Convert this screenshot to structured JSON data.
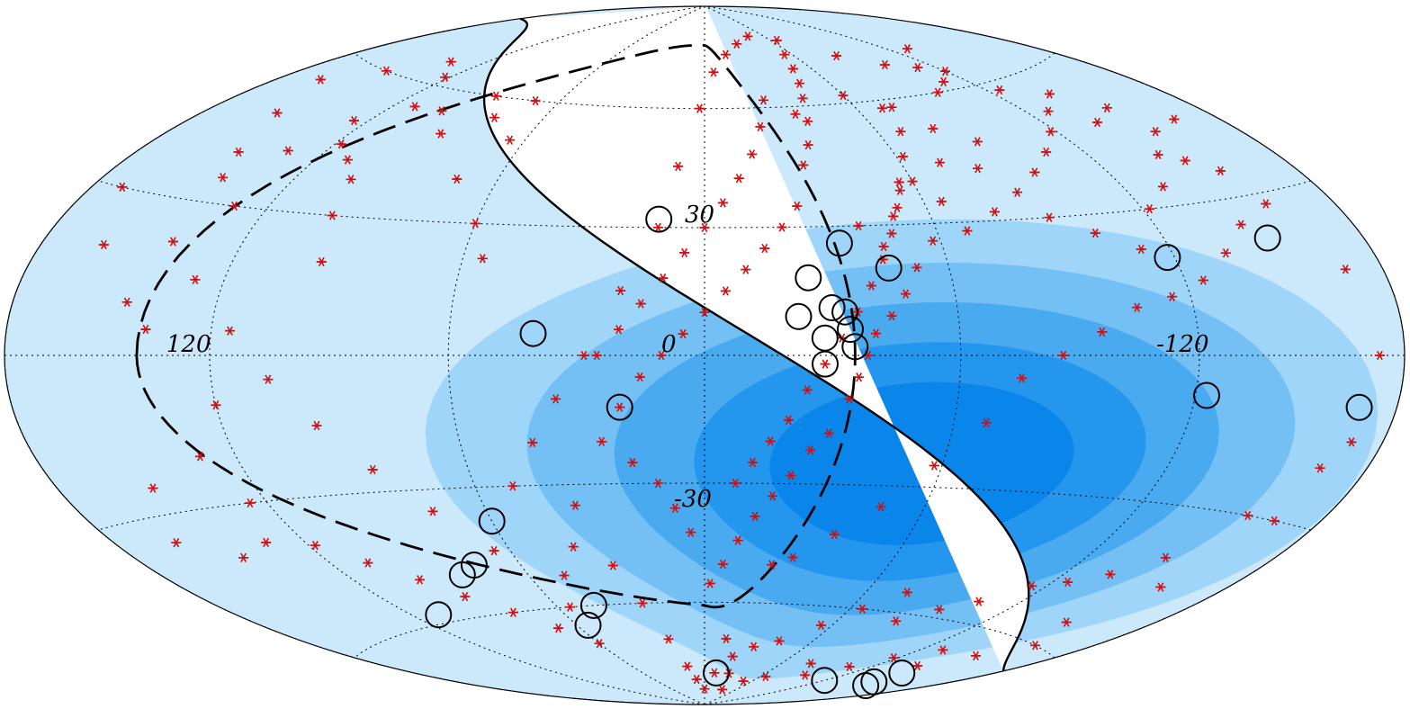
{
  "chart_data": {
    "type": "scatter",
    "projection": "aitoff",
    "coordinate_system": "galactic",
    "title": "",
    "grid": true,
    "lon_labels": [
      "120",
      "0",
      "-120"
    ],
    "lat_labels": [
      "30",
      "-30"
    ],
    "lon_label_values": [
      120,
      0,
      -120
    ],
    "lat_label_values": [
      30,
      -30
    ],
    "grid_lon_values": [
      -180,
      -120,
      -60,
      0,
      60,
      120,
      180
    ],
    "grid_lat_values": [
      -60,
      -30,
      0,
      30,
      60
    ],
    "colors": {
      "exposure_levels": [
        "#cce9fb",
        "#9fd5f8",
        "#74c0f4",
        "#4aaaf0",
        "#2496ee",
        "#0a86ea"
      ],
      "marker": "#d01010",
      "source_circle": "#000000"
    },
    "exposure_bands_lonlat": [
      [
        -55,
        -25,
        165,
        68
      ],
      [
        -55,
        -25,
        138,
        56
      ],
      [
        -55,
        -25,
        110,
        46
      ],
      [
        -55,
        -25,
        86,
        37
      ],
      [
        -55,
        -25,
        64,
        28
      ],
      [
        -55,
        -25,
        43,
        19
      ]
    ],
    "field_of_view_boundary": "solid curve",
    "supergalactic_plane": "dashed curve",
    "events": [
      [
        147,
        40
      ],
      [
        132,
        42
      ],
      [
        125,
        50
      ],
      [
        118,
        45
      ],
      [
        110,
        42
      ],
      [
        103,
        38
      ],
      [
        100,
        30
      ],
      [
        96,
        20
      ],
      [
        140,
        22
      ],
      [
        130,
        30
      ],
      [
        150,
        60
      ],
      [
        135,
        65
      ],
      [
        122,
        62
      ],
      [
        112,
        55
      ],
      [
        100,
        55
      ],
      [
        90,
        50
      ],
      [
        88,
        60
      ],
      [
        78,
        55
      ],
      [
        70,
        60
      ],
      [
        65,
        50
      ],
      [
        72,
        40
      ],
      [
        60,
        30
      ],
      [
        55,
        22
      ],
      [
        170,
        30
      ],
      [
        160,
        20
      ],
      [
        145,
        10
      ],
      [
        138,
        5
      ],
      [
        120,
        -10
      ],
      [
        130,
        -20
      ],
      [
        150,
        -25
      ],
      [
        160,
        -35
      ],
      [
        145,
        -40
      ],
      [
        132,
        -38
      ],
      [
        125,
        -30
      ],
      [
        118,
        -40
      ],
      [
        108,
        -45
      ],
      [
        98,
        -50
      ],
      [
        90,
        -55
      ],
      [
        80,
        -60
      ],
      [
        70,
        -65
      ],
      [
        60,
        -70
      ],
      [
        55,
        -60
      ],
      [
        48,
        -52
      ],
      [
        40,
        -45
      ],
      [
        35,
        -35
      ],
      [
        30,
        -50
      ],
      [
        25,
        -60
      ],
      [
        20,
        -70
      ],
      [
        15,
        -78
      ],
      [
        10,
        -82
      ],
      [
        0,
        -85
      ],
      [
        -10,
        -80
      ],
      [
        -20,
        -75
      ],
      [
        -30,
        -72
      ],
      [
        -42,
        -70
      ],
      [
        -55,
        -65
      ],
      [
        -65,
        -60
      ],
      [
        -75,
        -55
      ],
      [
        -85,
        -62
      ],
      [
        -95,
        -58
      ],
      [
        -105,
        -55
      ],
      [
        -115,
        -50
      ],
      [
        -125,
        -48
      ],
      [
        -135,
        -45
      ],
      [
        -145,
        -40
      ],
      [
        -155,
        -30
      ],
      [
        -165,
        -20
      ],
      [
        -160,
        -60
      ],
      [
        -150,
        -65
      ],
      [
        -140,
        -70
      ],
      [
        -130,
        -66
      ],
      [
        -118,
        -70
      ],
      [
        -108,
        -74
      ],
      [
        -95,
        -78
      ],
      [
        -80,
        -75
      ],
      [
        -65,
        -80
      ],
      [
        -50,
        -82
      ],
      [
        -35,
        -85
      ],
      [
        -25,
        -80
      ],
      [
        -12,
        -70
      ],
      [
        -22,
        -50
      ],
      [
        -28,
        -48
      ],
      [
        -38,
        -42
      ],
      [
        -48,
        -35
      ],
      [
        -58,
        -25
      ],
      [
        -68,
        -15
      ],
      [
        -75,
        -5
      ],
      [
        -85,
        0
      ],
      [
        -95,
        5
      ],
      [
        -105,
        10
      ],
      [
        -115,
        12
      ],
      [
        -125,
        15
      ],
      [
        -135,
        20
      ],
      [
        -145,
        25
      ],
      [
        -155,
        35
      ],
      [
        -165,
        45
      ],
      [
        -150,
        50
      ],
      [
        -140,
        55
      ],
      [
        -128,
        52
      ],
      [
        -118,
        48
      ],
      [
        -108,
        44
      ],
      [
        -98,
        40
      ],
      [
        -88,
        36
      ],
      [
        -78,
        32
      ],
      [
        -68,
        28
      ],
      [
        -58,
        26
      ],
      [
        -52,
        20
      ],
      [
        -48,
        14
      ],
      [
        -44,
        9
      ],
      [
        -40,
        5
      ],
      [
        -38,
        0
      ],
      [
        -36,
        -5
      ],
      [
        -34,
        -10
      ],
      [
        -30,
        -18
      ],
      [
        -26,
        -22
      ],
      [
        -22,
        -28
      ],
      [
        -18,
        -33
      ],
      [
        -14,
        -38
      ],
      [
        -10,
        -44
      ],
      [
        -6,
        -50
      ],
      [
        -2,
        -55
      ],
      [
        -30,
        45
      ],
      [
        -34,
        50
      ],
      [
        -38,
        56
      ],
      [
        -42,
        62
      ],
      [
        -46,
        66
      ],
      [
        -50,
        70
      ],
      [
        -55,
        74
      ],
      [
        -35,
        58
      ],
      [
        -25,
        62
      ],
      [
        -20,
        55
      ],
      [
        -15,
        48
      ],
      [
        -10,
        42
      ],
      [
        -5,
        36
      ],
      [
        0,
        30
      ],
      [
        5,
        24
      ],
      [
        10,
        18
      ],
      [
        15,
        12
      ],
      [
        20,
        6
      ],
      [
        25,
        0
      ],
      [
        -60,
        62
      ],
      [
        -70,
        58
      ],
      [
        -80,
        52
      ],
      [
        -90,
        48
      ],
      [
        -100,
        60
      ],
      [
        -110,
        62
      ],
      [
        -120,
        64
      ],
      [
        -130,
        70
      ],
      [
        -60,
        40
      ],
      [
        -65,
        35
      ],
      [
        -72,
        44
      ],
      [
        -82,
        42
      ],
      [
        -92,
        30
      ],
      [
        -102,
        26
      ],
      [
        -112,
        22
      ],
      [
        -122,
        30
      ],
      [
        -132,
        34
      ],
      [
        -142,
        40
      ],
      [
        -152,
        44
      ],
      [
        -40,
        30
      ],
      [
        -45,
        25
      ],
      [
        -50,
        32
      ],
      [
        -55,
        38
      ],
      [
        -25,
        35
      ],
      [
        -20,
        30
      ],
      [
        -15,
        25
      ],
      [
        -10,
        20
      ],
      [
        -5,
        15
      ],
      [
        0,
        10
      ],
      [
        5,
        5
      ],
      [
        10,
        0
      ],
      [
        15,
        -5
      ],
      [
        20,
        -12
      ],
      [
        25,
        -20
      ],
      [
        18,
        -25
      ],
      [
        12,
        -30
      ],
      [
        8,
        -36
      ],
      [
        4,
        -42
      ],
      [
        -8,
        -30
      ],
      [
        -12,
        -25
      ],
      [
        -16,
        -20
      ],
      [
        -20,
        -15
      ],
      [
        -24,
        -8
      ],
      [
        -28,
        -2
      ],
      [
        -32,
        4
      ],
      [
        -36,
        10
      ],
      [
        -40,
        16
      ],
      [
        -44,
        22
      ],
      [
        -48,
        28
      ],
      [
        -52,
        34
      ],
      [
        -56,
        40
      ],
      [
        -62,
        46
      ],
      [
        -68,
        52
      ],
      [
        -74,
        58
      ],
      [
        165,
        55
      ],
      [
        155,
        48
      ],
      [
        142,
        35
      ],
      [
        128,
        15
      ],
      [
        115,
        5
      ],
      [
        105,
        -5
      ],
      [
        95,
        -15
      ],
      [
        85,
        -25
      ],
      [
        75,
        -35
      ],
      [
        65,
        -45
      ],
      [
        50,
        -30
      ],
      [
        42,
        -20
      ],
      [
        35,
        -10
      ],
      [
        28,
        0
      ],
      [
        20,
        15
      ],
      [
        12,
        30
      ],
      [
        8,
        45
      ],
      [
        2,
        60
      ],
      [
        -5,
        70
      ],
      [
        -15,
        75
      ],
      [
        -28,
        78
      ],
      [
        -45,
        80
      ],
      [
        -65,
        78
      ],
      [
        -85,
        72
      ],
      [
        -100,
        68
      ],
      [
        -112,
        66
      ],
      [
        -125,
        58
      ],
      [
        -138,
        48
      ],
      [
        -148,
        38
      ],
      [
        -158,
        28
      ],
      [
        -168,
        15
      ],
      [
        -172,
        0
      ],
      [
        -170,
        -15
      ],
      [
        -165,
        -30
      ],
      [
        -158,
        -45
      ],
      [
        -150,
        -55
      ]
    ],
    "sources": [
      [
        12,
        32
      ],
      [
        -34,
        26
      ],
      [
        -45,
        20
      ],
      [
        -25,
        18
      ],
      [
        -30,
        11
      ],
      [
        -33,
        10
      ],
      [
        -34,
        6
      ],
      [
        -22,
        9
      ],
      [
        -28,
        4
      ],
      [
        -35,
        2
      ],
      [
        -28,
        -2
      ],
      [
        40,
        5
      ],
      [
        -118,
        20
      ],
      [
        -150,
        22
      ],
      [
        -123,
        -8
      ],
      [
        -168,
        -9
      ],
      [
        20,
        -12
      ],
      [
        60,
        -38
      ],
      [
        75,
        -48
      ],
      [
        82,
        -50
      ],
      [
        110,
        -58
      ],
      [
        45,
        -60
      ],
      [
        55,
        -65
      ],
      [
        -12,
        -80
      ],
      [
        -145,
        -72
      ],
      [
        -150,
        -75
      ],
      [
        -155,
        -76
      ],
      [
        -120,
        -78
      ]
    ]
  }
}
